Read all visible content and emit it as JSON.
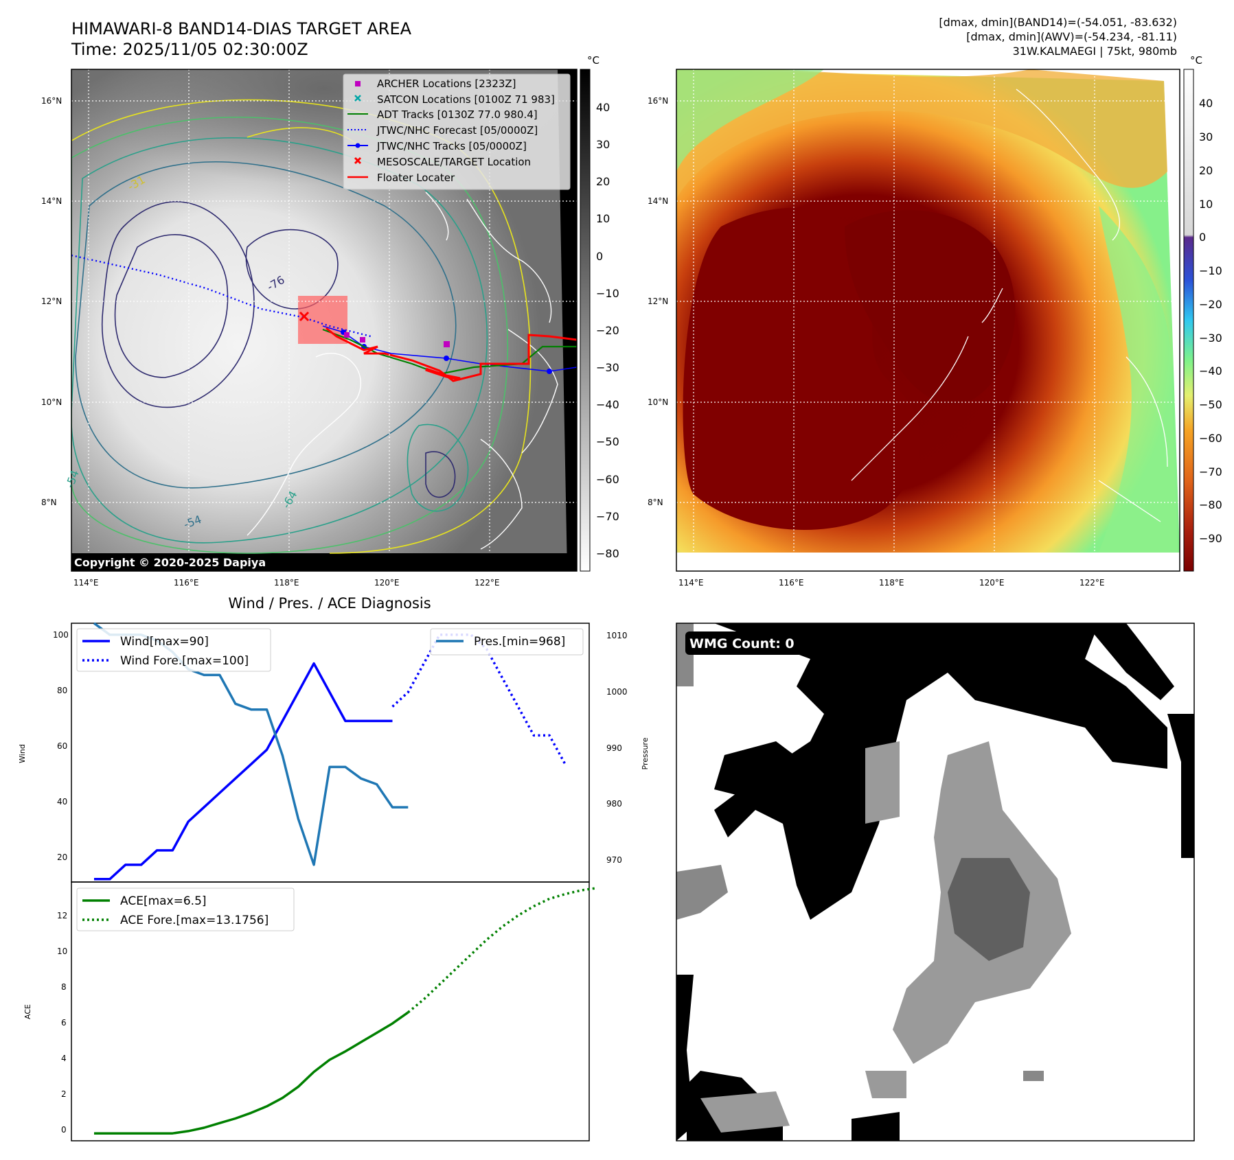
{
  "header": {
    "title_line1": "HIMAWARI-8 BAND14-DIAS TARGET AREA",
    "title_line2": "Time: 2025/11/05 02:30:00Z",
    "dmax_band14": "[dmax, dmin](BAND14)=(-54.051, -83.632)",
    "dmax_awv": "[dmax, dmin](AWV)=(-54.234, -81.11)",
    "storm": "31W.KALMAEGI | 75kt, 980mb"
  },
  "map": {
    "lon_labels": [
      "114°E",
      "116°E",
      "118°E",
      "120°E",
      "122°E"
    ],
    "lat_labels": [
      "16°N",
      "14°N",
      "12°N",
      "10°N",
      "8°N"
    ],
    "copyright": "Copyright © 2020-2025 Dapiya",
    "contour_labels": [
      "-31",
      "-54",
      "-64",
      "-54",
      "-76"
    ],
    "legend": [
      {
        "label": "ARCHER Locations [2323Z]",
        "color": "#c000c0",
        "marker": "square"
      },
      {
        "label": "SATCON Locations [0100Z 71 983]",
        "color": "#00a6a6",
        "marker": "x"
      },
      {
        "label": "ADT Tracks [0130Z 77.0 980.4]",
        "color": "#008000",
        "marker": "line"
      },
      {
        "label": "JTWC/NHC Forecast [05/0000Z]",
        "color": "#0000ff",
        "marker": "dotted"
      },
      {
        "label": "JTWC/NHC Tracks [05/0000Z]",
        "color": "#0000ff",
        "marker": "line-dot"
      },
      {
        "label": "MESOSCALE/TARGET Location",
        "color": "#ff0000",
        "marker": "x"
      },
      {
        "label": "Floater Locater",
        "color": "#ff0000",
        "marker": "line"
      }
    ],
    "colorbar_unit": "°C",
    "cb1_ticks": [
      "40",
      "30",
      "20",
      "10",
      "0",
      "−10",
      "−20",
      "−30",
      "−40",
      "−50",
      "−60",
      "−70",
      "−80"
    ],
    "cb2_ticks": [
      "40",
      "30",
      "20",
      "10",
      "0",
      "−10",
      "−20",
      "−30",
      "−40",
      "−50",
      "−60",
      "−70",
      "−80",
      "−90"
    ]
  },
  "diagnosis": {
    "title": "Wind / Pres. / ACE Diagnosis",
    "wind_ylabel": "Wind",
    "pres_ylabel": "Pressure",
    "ace_ylabel": "ACE",
    "wind_ticks": [
      "100",
      "80",
      "60",
      "40",
      "20"
    ],
    "pres_ticks": [
      "1010",
      "1000",
      "990",
      "980",
      "970"
    ],
    "ace_ticks": [
      "12",
      "10",
      "8",
      "6",
      "4",
      "2",
      "0"
    ],
    "legend_wind": "Wind[max=90]",
    "legend_wind_fore": "Wind Fore.[max=100]",
    "legend_pres": "Pres.[min=968]",
    "legend_ace": "ACE[max=6.5]",
    "legend_ace_fore": "ACE Fore.[max=13.1756]"
  },
  "wmg": {
    "label": "WMG Count: 0"
  },
  "colors": {
    "wind": "#0000ff",
    "pres": "#1f77b4",
    "ace": "#008000"
  },
  "chart_data": [
    {
      "type": "line",
      "title": "Wind / Pres. / ACE Diagnosis",
      "ylabel": "Wind",
      "ylim": [
        14,
        104
      ],
      "series": [
        {
          "name": "Wind[max=90]",
          "x": [
            0,
            1,
            2,
            3,
            4,
            5,
            6,
            7,
            8,
            9,
            10,
            11,
            12,
            13,
            14,
            15,
            16,
            17,
            18,
            19
          ],
          "values": [
            15,
            15,
            20,
            20,
            25,
            25,
            35,
            40,
            45,
            50,
            55,
            60,
            70,
            80,
            90,
            80,
            70,
            70,
            70,
            70
          ]
        },
        {
          "name": "Wind Fore.[max=100]",
          "x": [
            19,
            20,
            21,
            22,
            23,
            24,
            25,
            26,
            27,
            28,
            29,
            30
          ],
          "values": [
            75,
            80,
            90,
            100,
            100,
            100,
            95,
            85,
            75,
            65,
            65,
            55
          ]
        }
      ]
    },
    {
      "type": "line",
      "ylabel": "Pressure",
      "ylim": [
        965,
        1010
      ],
      "series": [
        {
          "name": "Pres.[min=968]",
          "x": [
            0,
            1,
            2,
            3,
            4,
            5,
            6,
            7,
            8,
            9,
            10,
            11,
            12,
            13,
            14,
            15,
            16,
            17,
            18,
            19,
            20
          ],
          "values": [
            1010,
            1008,
            1008,
            1008,
            1007,
            1005,
            1002,
            1001,
            1001,
            996,
            995,
            995,
            987,
            976,
            968,
            985,
            985,
            983,
            982,
            978,
            978
          ]
        }
      ]
    },
    {
      "type": "line",
      "ylabel": "ACE",
      "ylim": [
        -0.4,
        13.5
      ],
      "series": [
        {
          "name": "ACE[max=6.5]",
          "x": [
            0,
            1,
            2,
            3,
            4,
            5,
            6,
            7,
            8,
            9,
            10,
            11,
            12,
            13,
            14,
            15,
            16,
            17,
            18,
            19,
            20
          ],
          "values": [
            0,
            0,
            0,
            0,
            0,
            0,
            0.12,
            0.3,
            0.55,
            0.8,
            1.1,
            1.45,
            1.9,
            2.5,
            3.3,
            3.95,
            4.4,
            4.9,
            5.4,
            5.9,
            6.5
          ]
        },
        {
          "name": "ACE Fore.[max=13.1756]",
          "x": [
            20,
            21,
            22,
            23,
            24,
            25,
            26,
            27,
            28,
            29,
            30,
            31,
            32
          ],
          "values": [
            6.5,
            7.2,
            8.0,
            8.8,
            9.6,
            10.4,
            11.1,
            11.7,
            12.2,
            12.6,
            12.85,
            13.05,
            13.1756
          ]
        }
      ]
    }
  ]
}
